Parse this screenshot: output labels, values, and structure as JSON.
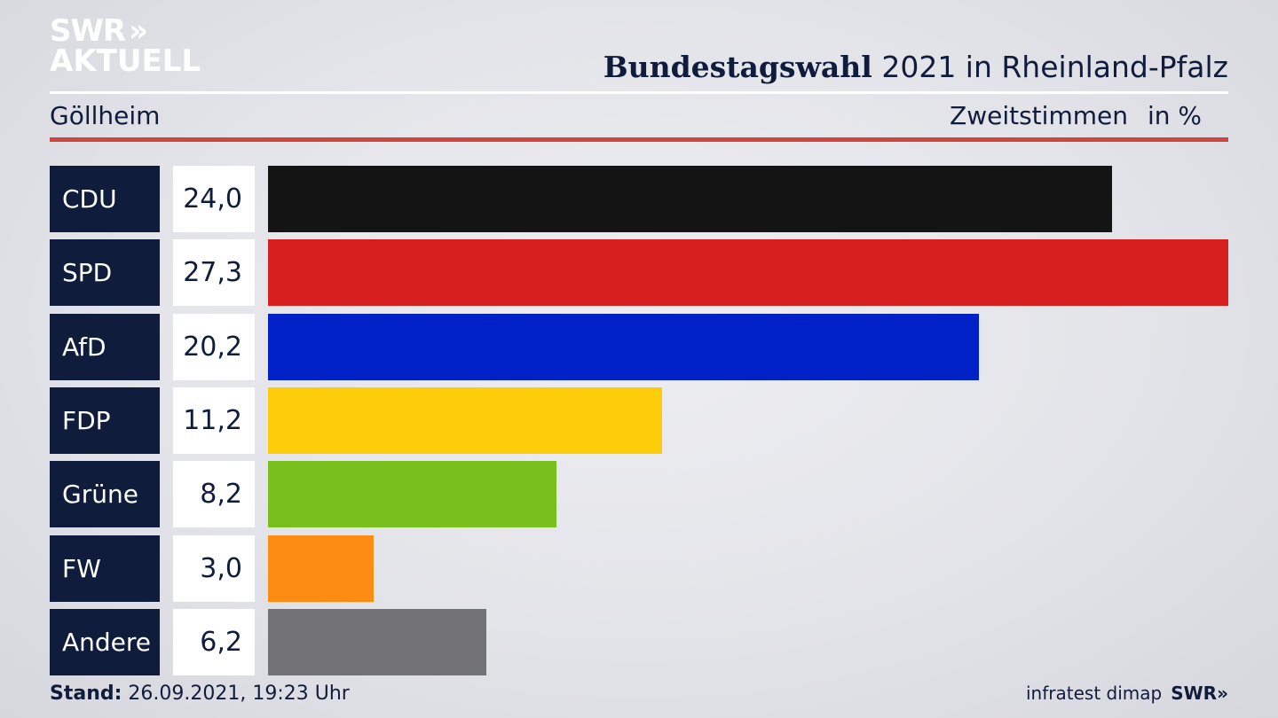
{
  "logo": {
    "line1": "SWR",
    "line2": "AKTUELL",
    "chevrons": "»"
  },
  "header": {
    "title_bold": "Bundestagswahl",
    "title_rest": "2021 in Rheinland-Pfalz",
    "region": "Göllheim",
    "measure": "Zweitstimmen",
    "unit": "in %"
  },
  "footer": {
    "stand_label": "Stand:",
    "stand_value": "26.09.2021, 19:23 Uhr",
    "source": "infratest dimap",
    "brand": "SWR»"
  },
  "colors": {
    "CDU": "#141414",
    "SPD": "#d81f1f",
    "AfD": "#0021c8",
    "FDP": "#fdcc0a",
    "Grüne": "#79bf1e",
    "FW": "#fd8c14",
    "Andere": "#727274"
  },
  "chart_data": {
    "type": "bar",
    "categories": [
      "CDU",
      "SPD",
      "AfD",
      "FDP",
      "Grüne",
      "FW",
      "Andere"
    ],
    "values": [
      24.0,
      27.3,
      20.2,
      11.2,
      8.2,
      3.0,
      6.2
    ],
    "value_labels": [
      "24,0",
      "27,3",
      "20,2",
      "11,2",
      "8,2",
      "3,0",
      "6,2"
    ],
    "title": "Bundestagswahl 2021 in Rheinland-Pfalz",
    "xlabel": "",
    "ylabel": "Zweitstimmen in %",
    "xlim": [
      0,
      27.3
    ]
  }
}
